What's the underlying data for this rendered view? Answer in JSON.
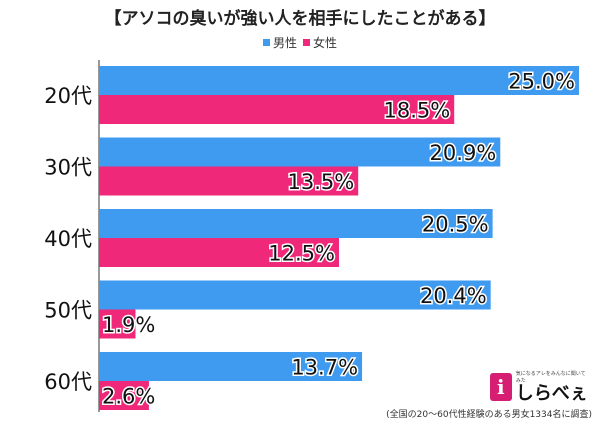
{
  "title": "【アソコの臭いが強い人を相手にしたことがある】",
  "legend": {
    "male": "男性",
    "female": "女性"
  },
  "colors": {
    "male": "#3f9bef",
    "female": "#f0287a"
  },
  "chart_data": {
    "type": "bar",
    "orientation": "horizontal",
    "categories": [
      "20代",
      "30代",
      "40代",
      "50代",
      "60代"
    ],
    "series": [
      {
        "name": "男性",
        "values": [
          25.0,
          20.9,
          20.5,
          20.4,
          13.7
        ],
        "labels": [
          "25.0%",
          "20.9%",
          "20.5%",
          "20.4%",
          "13.7%"
        ]
      },
      {
        "name": "女性",
        "values": [
          18.5,
          13.5,
          12.5,
          1.9,
          2.6
        ],
        "labels": [
          "18.5%",
          "13.5%",
          "12.5%",
          "1.9%",
          "2.6%"
        ]
      }
    ],
    "xlim": [
      0,
      25
    ],
    "grid": false,
    "legend_position": "top"
  },
  "footnote": "(全国の20～60代性経験のある男女1334名に調査)",
  "logo": {
    "mark": "i",
    "tagline": "気になるアレをみんなに聞いてみた",
    "name": "しらべぇ"
  }
}
